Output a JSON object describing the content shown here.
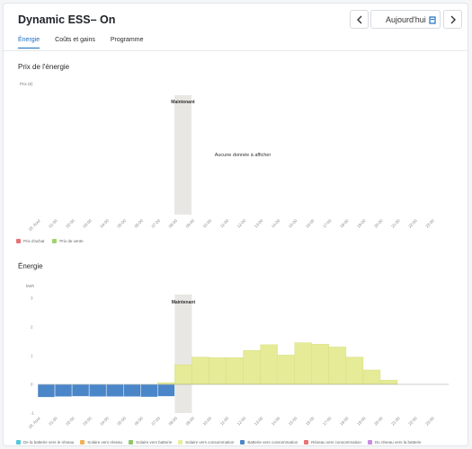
{
  "header": {
    "title": "Dynamic ESS– On",
    "prev_icon": "chevron-left-icon",
    "next_icon": "chevron-right-icon",
    "date_label": "Aujourd'hui",
    "calendar_icon": "calendar-icon"
  },
  "tabs": [
    {
      "label": "Énergie",
      "active": true
    },
    {
      "label": "Coûts et gains",
      "active": false
    },
    {
      "label": "Programme",
      "active": false
    }
  ],
  "colors": {
    "accent": "#1b6dc1",
    "now_band": "#e8e7e3",
    "battery_to_consumption": "#4a86c8",
    "solar_to_consumption": "#e8ee9b"
  },
  "price_chart": {
    "section_title": "Prix de l'énergie",
    "ylabel": "Prix (€)",
    "now_label": "Maintenant",
    "empty_message": "Aucune donnée à afficher",
    "legend": [
      {
        "name": "Prix d'achat",
        "color": "#e87373"
      },
      {
        "name": "Prix de vente",
        "color": "#9fd46d"
      }
    ]
  },
  "chart_data": {
    "type": "bar",
    "title": "Énergie",
    "ylabel": "kWh",
    "ylim": [
      -1,
      3
    ],
    "yticks": [
      "3",
      "2",
      "1",
      "0",
      "-1"
    ],
    "now_label": "Maintenant",
    "now_range": [
      "08:00",
      "09:00"
    ],
    "categories": [
      "18. Aout",
      "01:00",
      "02:00",
      "03:00",
      "04:00",
      "05:00",
      "06:00",
      "07:00",
      "08:00",
      "09:00",
      "10:00",
      "11:00",
      "12:00",
      "13:00",
      "14:00",
      "15:00",
      "16:00",
      "17:00",
      "18:00",
      "19:00",
      "20:00",
      "21:00",
      "22:00",
      "23:00"
    ],
    "series": [
      {
        "name": "Batterie vers consommation",
        "color": "#4a86c8",
        "values": [
          -0.45,
          -0.43,
          -0.42,
          -0.43,
          -0.43,
          -0.43,
          -0.44,
          -0.42,
          0,
          0,
          0,
          0,
          0,
          0,
          0,
          0,
          0,
          0,
          0,
          0,
          0,
          0,
          0,
          0
        ]
      },
      {
        "name": "Solaire vers consommation",
        "color": "#e8ee9b",
        "values": [
          0,
          0,
          0,
          0,
          0,
          0,
          0,
          0.06,
          0.68,
          0.95,
          0.93,
          0.93,
          1.18,
          1.38,
          1.02,
          1.45,
          1.4,
          1.3,
          0.95,
          0.5,
          0.15,
          0,
          0,
          0
        ]
      }
    ],
    "legend": [
      {
        "name": "De la batterie vers le réseau",
        "color": "#55c7d9"
      },
      {
        "name": "Solaire vers réseau",
        "color": "#f0b157"
      },
      {
        "name": "Solaire vers batterie",
        "color": "#8fc66e"
      },
      {
        "name": "Solaire vers consommation",
        "color": "#e8ee9b"
      },
      {
        "name": "Batterie vers consommation",
        "color": "#4a86c8"
      },
      {
        "name": "Réseau vers consommation",
        "color": "#e87373"
      },
      {
        "name": "Du réseau vers la batterie",
        "color": "#c98de0"
      }
    ]
  }
}
